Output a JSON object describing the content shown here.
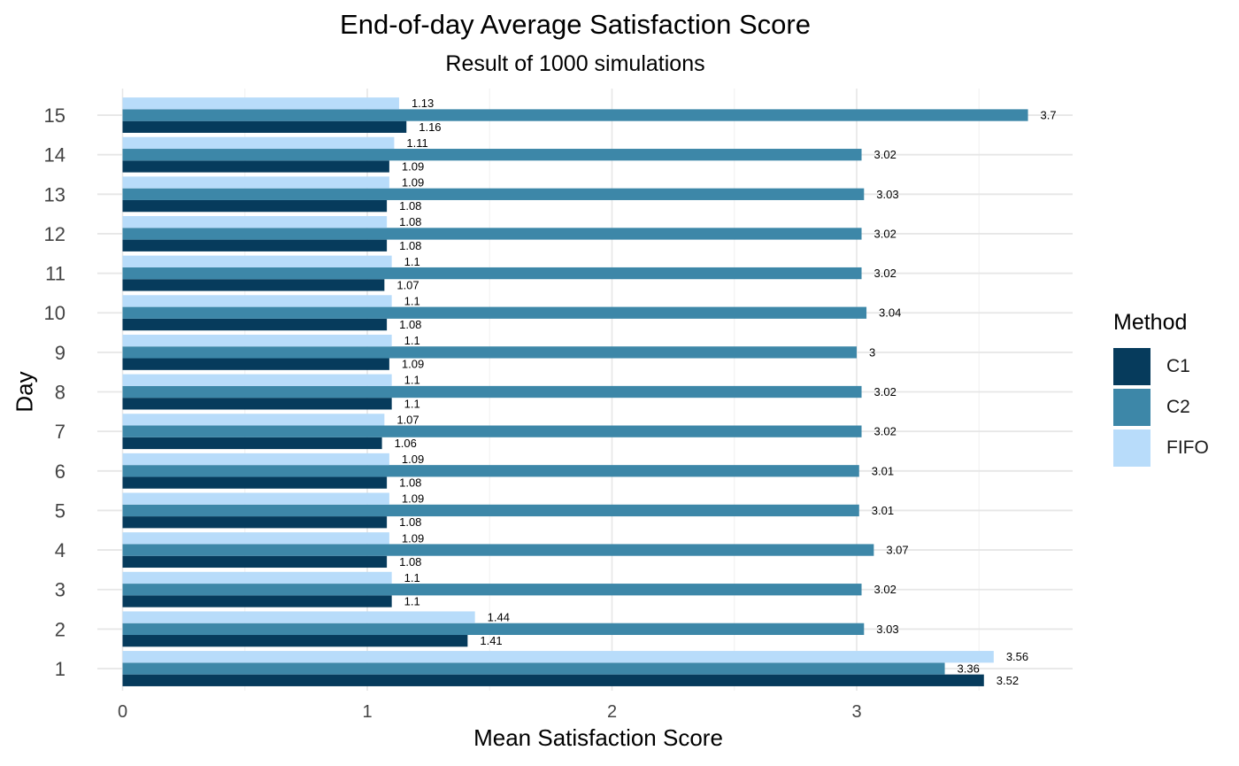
{
  "chart_data": {
    "type": "bar",
    "orientation": "horizontal",
    "title": "End-of-day Average Satisfaction Score",
    "subtitle": "Result of 1000 simulations",
    "xlabel": "Mean Satisfaction Score",
    "ylabel": "Day",
    "xlim": [
      0,
      3.9
    ],
    "x_ticks": [
      "0",
      "1",
      "2",
      "3"
    ],
    "categories": [
      "1",
      "2",
      "3",
      "4",
      "5",
      "6",
      "7",
      "8",
      "9",
      "10",
      "11",
      "12",
      "13",
      "14",
      "15"
    ],
    "grid": true,
    "legend_title": "Method",
    "legend_position": "right",
    "series": [
      {
        "name": "C1",
        "color": "#063b5c",
        "values": [
          3.52,
          1.41,
          1.1,
          1.08,
          1.08,
          1.08,
          1.06,
          1.1,
          1.09,
          1.08,
          1.07,
          1.08,
          1.08,
          1.09,
          1.16
        ]
      },
      {
        "name": "C2",
        "color": "#3d87a8",
        "values": [
          3.36,
          3.03,
          3.02,
          3.07,
          3.01,
          3.01,
          3.02,
          3.02,
          3,
          3.04,
          3.02,
          3.02,
          3.03,
          3.02,
          3.7
        ]
      },
      {
        "name": "FIFO",
        "color": "#b8dcfa",
        "values": [
          3.56,
          1.44,
          1.1,
          1.09,
          1.09,
          1.09,
          1.07,
          1.1,
          1.1,
          1.1,
          1.1,
          1.08,
          1.09,
          1.11,
          1.13
        ]
      }
    ],
    "data_labels": {
      "C1": [
        "3.52",
        "1.41",
        "1.1",
        "1.08",
        "1.08",
        "1.08",
        "1.06",
        "1.1",
        "1.09",
        "1.08",
        "1.07",
        "1.08",
        "1.08",
        "1.09",
        "1.16"
      ],
      "C2": [
        "3.36",
        "3.03",
        "3.02",
        "3.07",
        "3.01",
        "3.01",
        "3.02",
        "3.02",
        "3",
        "3.04",
        "3.02",
        "3.02",
        "3.03",
        "3.02",
        "3.7"
      ],
      "FIFO": [
        "3.56",
        "1.44",
        "1.1",
        "1.09",
        "1.09",
        "1.09",
        "1.07",
        "1.1",
        "1.1",
        "1.1",
        "1.1",
        "1.08",
        "1.09",
        "1.11",
        "1.13"
      ]
    }
  }
}
